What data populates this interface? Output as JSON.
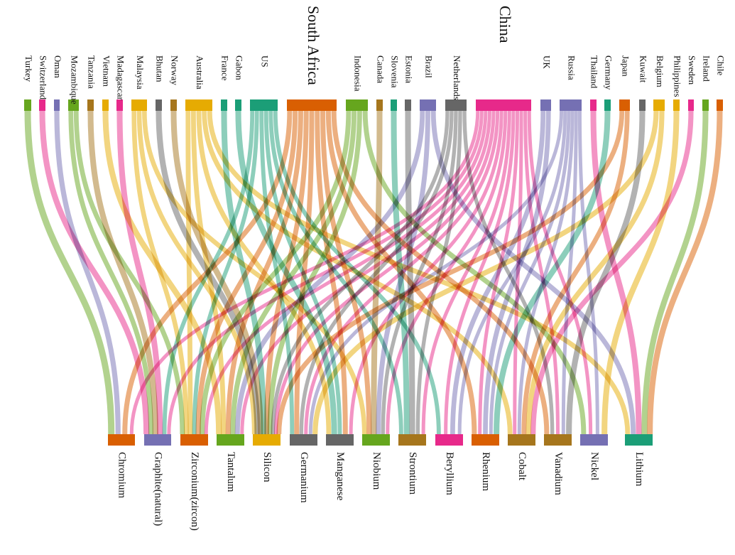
{
  "top_nodes": [
    {
      "id": "turkey",
      "label": "Turkey",
      "color": "#66a61e"
    },
    {
      "id": "switzerland",
      "label": "Switzerland",
      "color": "#e7298a"
    },
    {
      "id": "oman",
      "label": "Oman",
      "color": "#7570b3"
    },
    {
      "id": "mozambique",
      "label": "Mozambique",
      "color": "#66a61e"
    },
    {
      "id": "tanzania",
      "label": "Tanzania",
      "color": "#a6761d"
    },
    {
      "id": "vietnam",
      "label": "Vietnam",
      "color": "#e6ab02"
    },
    {
      "id": "madagascar",
      "label": "Madagascar",
      "color": "#e7298a"
    },
    {
      "id": "malaysia",
      "label": "Malaysia",
      "color": "#e6ab02"
    },
    {
      "id": "bhutan",
      "label": "Bhutan",
      "color": "#666666"
    },
    {
      "id": "norway",
      "label": "Norway",
      "color": "#a6761d"
    },
    {
      "id": "australia",
      "label": "Australia",
      "color": "#e6ab02"
    },
    {
      "id": "france",
      "label": "France",
      "color": "#1b9e77"
    },
    {
      "id": "gabon",
      "label": "Gabon",
      "color": "#1b9e77"
    },
    {
      "id": "us",
      "label": "US",
      "color": "#1b9e77"
    },
    {
      "id": "south_africa",
      "label": "South Africa",
      "color": "#d95f02"
    },
    {
      "id": "indonesia",
      "label": "Indonesia",
      "color": "#66a61e"
    },
    {
      "id": "canada",
      "label": "Canada",
      "color": "#a6761d"
    },
    {
      "id": "slovenia",
      "label": "Slovenia",
      "color": "#1b9e77"
    },
    {
      "id": "estonia",
      "label": "Estonia",
      "color": "#666666"
    },
    {
      "id": "brazil",
      "label": "Brazil",
      "color": "#7570b3"
    },
    {
      "id": "netherlands",
      "label": "Netherlands",
      "color": "#666666"
    },
    {
      "id": "china",
      "label": "China",
      "color": "#e7298a"
    },
    {
      "id": "uk",
      "label": "UK",
      "color": "#7570b3"
    },
    {
      "id": "russia",
      "label": "Russia",
      "color": "#7570b3"
    },
    {
      "id": "thailand",
      "label": "Thailand",
      "color": "#e7298a"
    },
    {
      "id": "germany",
      "label": "Germany",
      "color": "#1b9e77"
    },
    {
      "id": "japan",
      "label": "Japan",
      "color": "#d95f02"
    },
    {
      "id": "kuwait",
      "label": "Kuwait",
      "color": "#666666"
    },
    {
      "id": "belgium",
      "label": "Belgium",
      "color": "#e6ab02"
    },
    {
      "id": "philippines",
      "label": "Philippines",
      "color": "#e6ab02"
    },
    {
      "id": "sweden",
      "label": "Sweden",
      "color": "#e7298a"
    },
    {
      "id": "ireland",
      "label": "Ireland",
      "color": "#66a61e"
    },
    {
      "id": "chile",
      "label": "Chile",
      "color": "#d95f02"
    }
  ],
  "bottom_nodes": [
    {
      "id": "chromium",
      "label": "Chromium",
      "color": "#d95f02"
    },
    {
      "id": "graphite",
      "label": "Graphite(natural)",
      "color": "#7570b3"
    },
    {
      "id": "zirconium",
      "label": "Zirconium(zircon)",
      "color": "#d95f02"
    },
    {
      "id": "tantalum",
      "label": "Tantalum",
      "color": "#66a61e"
    },
    {
      "id": "silicon",
      "label": "Silicon",
      "color": "#e6ab02"
    },
    {
      "id": "germanium",
      "label": "Germanium",
      "color": "#666666"
    },
    {
      "id": "manganese",
      "label": "Manganese",
      "color": "#666666"
    },
    {
      "id": "niobium",
      "label": "Niobium",
      "color": "#66a61e"
    },
    {
      "id": "strontium",
      "label": "Strontium",
      "color": "#a6761d"
    },
    {
      "id": "beryllium",
      "label": "Beryllium",
      "color": "#e7298a"
    },
    {
      "id": "rhenium",
      "label": "Rhenium",
      "color": "#d95f02"
    },
    {
      "id": "cobalt",
      "label": "Cobalt",
      "color": "#a6761d"
    },
    {
      "id": "vanadium",
      "label": "Vanadium",
      "color": "#a6761d"
    },
    {
      "id": "nickel",
      "label": "Nickel",
      "color": "#7570b3"
    },
    {
      "id": "lithium",
      "label": "Lithium",
      "color": "#1b9e77"
    }
  ],
  "links": [
    [
      "turkey",
      "chromium"
    ],
    [
      "switzerland",
      "graphite"
    ],
    [
      "oman",
      "chromium"
    ],
    [
      "mozambique",
      "graphite"
    ],
    [
      "mozambique",
      "zirconium"
    ],
    [
      "tanzania",
      "graphite"
    ],
    [
      "vietnam",
      "tantalum"
    ],
    [
      "madagascar",
      "graphite"
    ],
    [
      "malaysia",
      "zirconium"
    ],
    [
      "malaysia",
      "silicon"
    ],
    [
      "malaysia",
      "niobium"
    ],
    [
      "bhutan",
      "silicon"
    ],
    [
      "norway",
      "silicon"
    ],
    [
      "australia",
      "zirconium"
    ],
    [
      "australia",
      "tantalum"
    ],
    [
      "australia",
      "manganese"
    ],
    [
      "australia",
      "cobalt"
    ],
    [
      "australia",
      "lithium"
    ],
    [
      "france",
      "silicon"
    ],
    [
      "gabon",
      "manganese"
    ],
    [
      "us",
      "graphite"
    ],
    [
      "us",
      "zirconium"
    ],
    [
      "us",
      "germanium"
    ],
    [
      "us",
      "manganese"
    ],
    [
      "us",
      "beryllium"
    ],
    [
      "us",
      "strontium"
    ],
    [
      "south_africa",
      "chromium"
    ],
    [
      "south_africa",
      "zirconium"
    ],
    [
      "south_africa",
      "tantalum"
    ],
    [
      "south_africa",
      "silicon"
    ],
    [
      "south_africa",
      "germanium"
    ],
    [
      "south_africa",
      "manganese"
    ],
    [
      "south_africa",
      "niobium"
    ],
    [
      "south_africa",
      "rhenium"
    ],
    [
      "south_africa",
      "vanadium"
    ],
    [
      "indonesia",
      "zirconium"
    ],
    [
      "indonesia",
      "tantalum"
    ],
    [
      "indonesia",
      "silicon"
    ],
    [
      "indonesia",
      "nickel"
    ],
    [
      "canada",
      "niobium"
    ],
    [
      "slovenia",
      "strontium"
    ],
    [
      "estonia",
      "strontium"
    ],
    [
      "brazil",
      "tantalum"
    ],
    [
      "brazil",
      "niobium"
    ],
    [
      "brazil",
      "lithium"
    ],
    [
      "netherlands",
      "silicon"
    ],
    [
      "netherlands",
      "germanium"
    ],
    [
      "netherlands",
      "niobium"
    ],
    [
      "netherlands",
      "strontium"
    ],
    [
      "netherlands",
      "vanadium"
    ],
    [
      "china",
      "chromium"
    ],
    [
      "china",
      "graphite"
    ],
    [
      "china",
      "zirconium"
    ],
    [
      "china",
      "tantalum"
    ],
    [
      "china",
      "silicon"
    ],
    [
      "china",
      "germanium"
    ],
    [
      "china",
      "manganese"
    ],
    [
      "china",
      "niobium"
    ],
    [
      "china",
      "strontium"
    ],
    [
      "china",
      "beryllium"
    ],
    [
      "china",
      "rhenium"
    ],
    [
      "china",
      "cobalt"
    ],
    [
      "china",
      "vanadium"
    ],
    [
      "china",
      "nickel"
    ],
    [
      "uk",
      "beryllium"
    ],
    [
      "uk",
      "rhenium"
    ],
    [
      "russia",
      "germanium"
    ],
    [
      "russia",
      "beryllium"
    ],
    [
      "russia",
      "rhenium"
    ],
    [
      "russia",
      "cobalt"
    ],
    [
      "russia",
      "vanadium"
    ],
    [
      "russia",
      "nickel"
    ],
    [
      "thailand",
      "lithium"
    ],
    [
      "germany",
      "rhenium"
    ],
    [
      "japan",
      "silicon"
    ],
    [
      "japan",
      "cobalt"
    ],
    [
      "kuwait",
      "vanadium"
    ],
    [
      "belgium",
      "germanium"
    ],
    [
      "belgium",
      "cobalt"
    ],
    [
      "philippines",
      "nickel"
    ],
    [
      "sweden",
      "cobalt"
    ],
    [
      "ireland",
      "lithium"
    ],
    [
      "chile",
      "lithium"
    ]
  ]
}
